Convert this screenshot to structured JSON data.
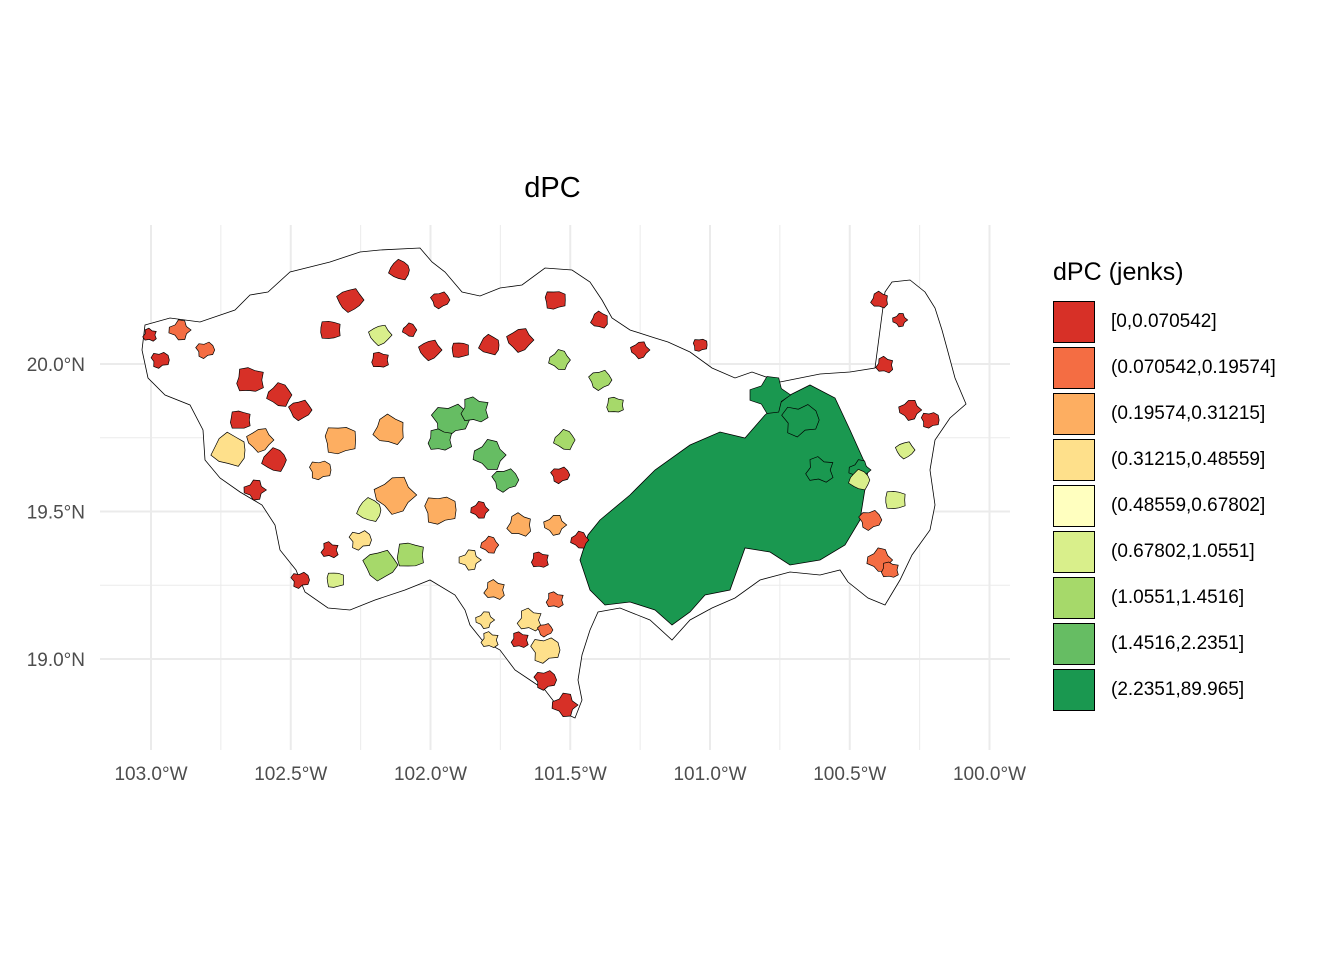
{
  "title": "dPC",
  "legend": {
    "title": "dPC (jenks)",
    "position": "right",
    "classes": [
      {
        "label": "[0,0.070542]",
        "color": "#d73027"
      },
      {
        "label": "(0.070542,0.19574]",
        "color": "#f46d43"
      },
      {
        "label": "(0.19574,0.31215]",
        "color": "#fdae61"
      },
      {
        "label": "(0.31215,0.48559]",
        "color": "#fee08b"
      },
      {
        "label": "(0.48559,0.67802]",
        "color": "#ffffbf"
      },
      {
        "label": "(0.67802,1.0551]",
        "color": "#d9ef8b"
      },
      {
        "label": "(1.0551,1.4516]",
        "color": "#a6d96a"
      },
      {
        "label": "(1.4516,2.2351]",
        "color": "#66bd63"
      },
      {
        "label": "(2.2351,89.965]",
        "color": "#1a9850"
      }
    ]
  },
  "axes": {
    "x_ticks": [
      {
        "value": -103.0,
        "label": "103.0°W"
      },
      {
        "value": -102.5,
        "label": "102.5°W"
      },
      {
        "value": -102.0,
        "label": "102.0°W"
      },
      {
        "value": -101.5,
        "label": "101.5°W"
      },
      {
        "value": -101.0,
        "label": "101.0°W"
      },
      {
        "value": -100.5,
        "label": "100.5°W"
      },
      {
        "value": -100.0,
        "label": "100.0°W"
      }
    ],
    "y_ticks": [
      {
        "value": 19.0,
        "label": "19.0°N"
      },
      {
        "value": 19.5,
        "label": "19.5°N"
      },
      {
        "value": 20.0,
        "label": "20.0°N"
      }
    ],
    "grid": true
  },
  "colors": {
    "grid": "#ebebeb",
    "outline": "#000000",
    "region_fill": "#ffffff"
  }
}
